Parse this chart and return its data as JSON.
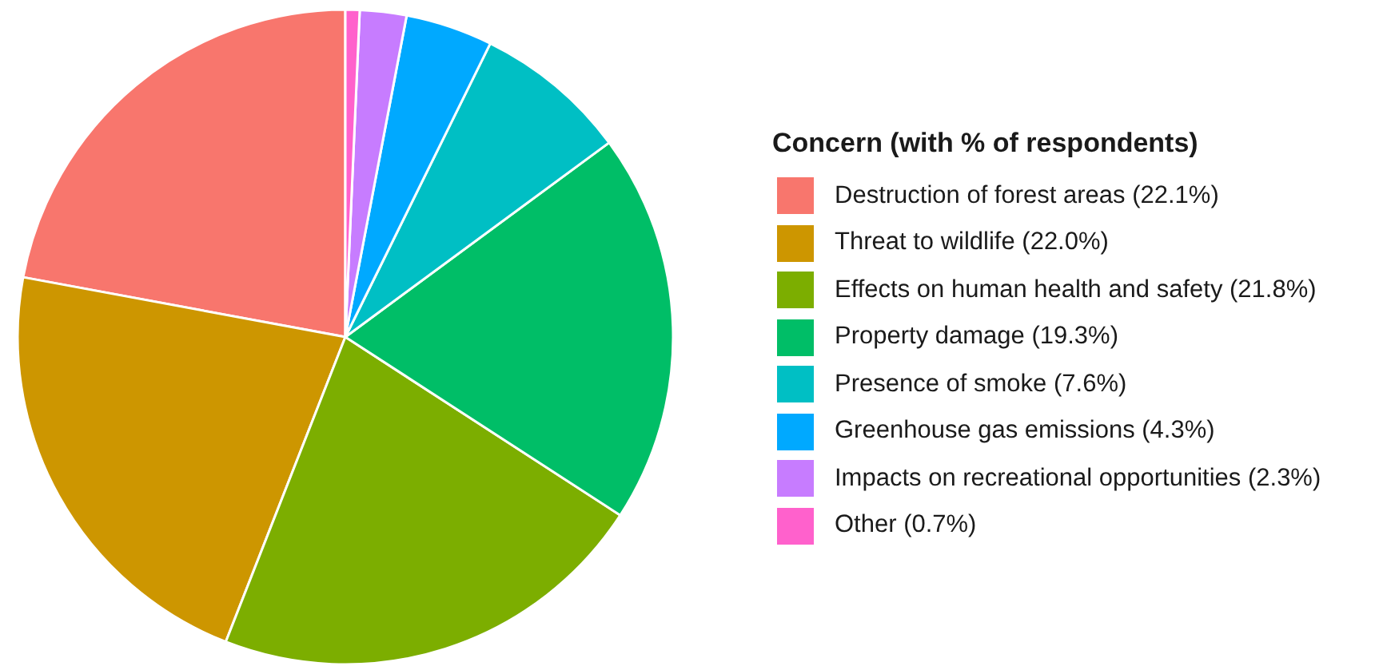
{
  "chart_data": {
    "type": "pie",
    "legend_title": "Concern (with % of respondents)",
    "categories": [
      "Destruction of forest areas (22.1%)",
      "Threat to wildlife (22.0%)",
      "Effects on human health and safety (21.8%)",
      "Property damage (19.3%)",
      "Presence of smoke (7.6%)",
      "Greenhouse gas emissions (4.3%)",
      "Impacts on recreational opportunities (2.3%)",
      "Other (0.7%)"
    ],
    "values": [
      22.1,
      22.0,
      21.8,
      19.3,
      7.6,
      4.3,
      2.3,
      0.7
    ],
    "colors": [
      "#f8766d",
      "#cd9600",
      "#7cae00",
      "#00be67",
      "#00bfc4",
      "#00a9ff",
      "#c77cff",
      "#ff61cc"
    ],
    "legend": "right"
  }
}
